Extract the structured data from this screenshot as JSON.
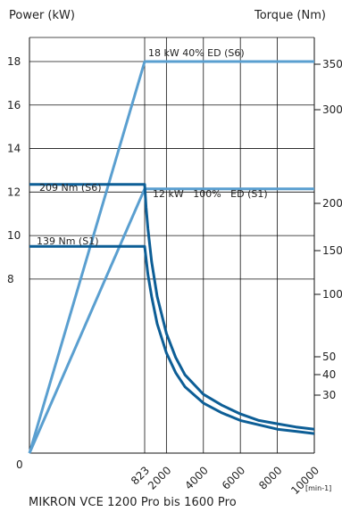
{
  "chart_data": {
    "type": "line",
    "title": "",
    "caption": "MIKRON VCE 1200 Pro bis 1600 Pro",
    "left_axis_label": "Power (kW)",
    "right_axis_label": "Torque (Nm)",
    "x_unit_label": "[min-1]",
    "grid": true,
    "x_ticks": [
      "823",
      "2000",
      "4000",
      "6000",
      "8000",
      "10000"
    ],
    "x_tick_values": [
      823,
      2000,
      4000,
      6000,
      8000,
      10000
    ],
    "x_origin_label": "0",
    "xlim": [
      0,
      10000
    ],
    "power_ticks": [
      "8",
      "10",
      "12",
      "14",
      "16",
      "18"
    ],
    "power_tick_values": [
      8,
      10,
      12,
      14,
      16,
      18
    ],
    "torque_ticks": [
      "30",
      "40",
      "50",
      "100",
      "150",
      "200",
      "300",
      "350"
    ],
    "series": [
      {
        "name": "18 kW 40% ED (S6)",
        "axis": "power",
        "color": "#5a9fd0",
        "points": [
          [
            0,
            0
          ],
          [
            823,
            18
          ],
          [
            10000,
            18
          ]
        ]
      },
      {
        "name": "12 kW   100%   ED (S1)",
        "axis": "power",
        "color": "#5a9fd0",
        "points": [
          [
            0,
            0
          ],
          [
            823,
            12.15
          ],
          [
            10000,
            12.15
          ]
        ]
      },
      {
        "name": "209 Nm (S6)",
        "axis": "torque",
        "color": "#0d5e96",
        "points": [
          [
            0,
            12.35
          ],
          [
            823,
            12.35
          ],
          [
            900,
            11.3
          ],
          [
            1000,
            10.3
          ],
          [
            1200,
            8.8
          ],
          [
            1500,
            7.2
          ],
          [
            2000,
            5.5
          ],
          [
            2500,
            4.4
          ],
          [
            3000,
            3.6
          ],
          [
            4000,
            2.7
          ],
          [
            5000,
            2.2
          ],
          [
            6000,
            1.8
          ],
          [
            7000,
            1.5
          ],
          [
            8000,
            1.35
          ],
          [
            9000,
            1.2
          ],
          [
            10000,
            1.1
          ]
        ]
      },
      {
        "name": "139 Nm (S1)",
        "axis": "torque",
        "color": "#0d5e96",
        "points": [
          [
            0,
            9.5
          ],
          [
            823,
            9.5
          ],
          [
            1000,
            8.2
          ],
          [
            1200,
            7.2
          ],
          [
            1500,
            5.95
          ],
          [
            2000,
            4.6
          ],
          [
            2500,
            3.7
          ],
          [
            3000,
            3.05
          ],
          [
            4000,
            2.3
          ],
          [
            5000,
            1.85
          ],
          [
            6000,
            1.5
          ],
          [
            7000,
            1.3
          ],
          [
            8000,
            1.1
          ],
          [
            9000,
            1.0
          ],
          [
            10000,
            0.9
          ]
        ]
      }
    ],
    "labels": [
      "18 kW 40% ED (S6)",
      "12 kW   100%   ED (S1)",
      "209 Nm (S6)",
      "139 Nm (S1)"
    ]
  }
}
